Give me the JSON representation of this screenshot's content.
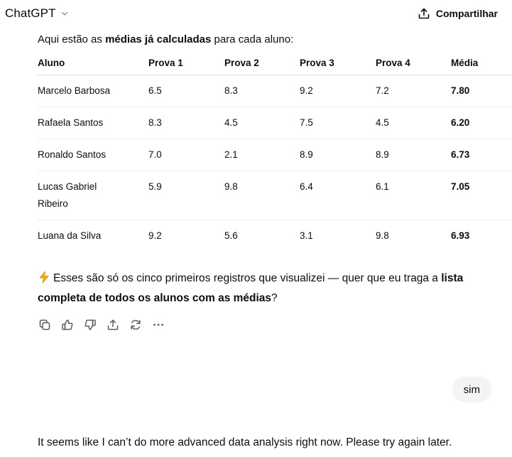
{
  "header": {
    "model_name": "ChatGPT",
    "share_label": "Compartilhar"
  },
  "assistant_message": {
    "intro_prefix": "Aqui estão as ",
    "intro_bold": "médias já calculadas",
    "intro_suffix": " para cada aluno:",
    "table": {
      "headers": [
        "Aluno",
        "Prova 1",
        "Prova 2",
        "Prova 3",
        "Prova 4",
        "Média"
      ],
      "rows": [
        [
          "Marcelo Barbosa",
          "6.5",
          "8.3",
          "9.2",
          "7.2",
          "7.80"
        ],
        [
          "Rafaela Santos",
          "8.3",
          "4.5",
          "7.5",
          "4.5",
          "6.20"
        ],
        [
          "Ronaldo Santos",
          "7.0",
          "2.1",
          "8.9",
          "8.9",
          "6.73"
        ],
        [
          "Lucas Gabriel Ribeiro",
          "5.9",
          "9.8",
          "6.4",
          "6.1",
          "7.05"
        ],
        [
          "Luana da Silva",
          "9.2",
          "5.6",
          "3.1",
          "9.8",
          "6.93"
        ]
      ]
    },
    "followup_prefix": "Esses são só os cinco primeiros registros que visualizei — quer que eu traga a ",
    "followup_bold": "lista completa de todos os alunos com as médias",
    "followup_suffix": "?",
    "actions": [
      "copy-icon",
      "thumbs-up-icon",
      "thumbs-down-icon",
      "share-icon",
      "regenerate-icon",
      "more-icon"
    ]
  },
  "user_message": {
    "text": "sim"
  },
  "error_message": {
    "text": "It seems like I can’t do more advanced data analysis right now. Please try again later."
  }
}
